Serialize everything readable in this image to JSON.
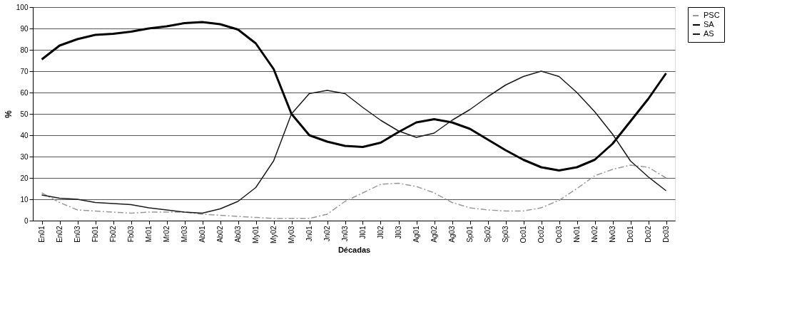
{
  "chart_data": {
    "type": "line",
    "xlabel": "Décadas",
    "ylabel": "%",
    "categories": [
      "En01",
      "En02",
      "En03",
      "Fb01",
      "Fb02",
      "Fb03",
      "Mr01",
      "Mr02",
      "Mr03",
      "Ab01",
      "Ab02",
      "Ab03",
      "My01",
      "My02",
      "My03",
      "Jn01",
      "Jn02",
      "Jn03",
      "Jl01",
      "Jl02",
      "Jl03",
      "Ag01",
      "Ag02",
      "Ag03",
      "Sp01",
      "Sp02",
      "Sp03",
      "Oc01",
      "Oc02",
      "Oc03",
      "Nv01",
      "Nv02",
      "Nv03",
      "Dc01",
      "Dc02",
      "Dc03"
    ],
    "series": [
      {
        "name": "PSC",
        "color": "#999999",
        "line_style": "dashed",
        "values": [
          13,
          8.5,
          5,
          4.5,
          4,
          3.5,
          4,
          4,
          4,
          3,
          2.5,
          2,
          1.5,
          1,
          1,
          1,
          3,
          9,
          13,
          17,
          17.5,
          16,
          13,
          8.5,
          6,
          5,
          4.5,
          4.5,
          6,
          9.5,
          15,
          21,
          24,
          26,
          25,
          20
        ]
      },
      {
        "name": "SA",
        "color": "#000000",
        "line_style": "solid",
        "values": [
          75.5,
          82,
          85,
          87,
          87.5,
          88.5,
          90,
          91,
          92.5,
          93,
          92,
          89.5,
          83,
          71,
          50,
          40,
          37,
          35,
          34.5,
          36.5,
          41.5,
          46,
          47.5,
          46,
          43,
          38,
          33,
          28.5,
          25,
          23.5,
          25,
          28.5,
          36,
          46.5,
          57,
          69
        ]
      },
      {
        "name": "AS",
        "color": "#1a1a1a",
        "line_style": "solid",
        "values": [
          12,
          10.5,
          10,
          8.5,
          8,
          7.5,
          6,
          5,
          4,
          3.5,
          5.5,
          9,
          15.5,
          28,
          50,
          59.5,
          61,
          59.5,
          53,
          47,
          42,
          39,
          41,
          47,
          52,
          58,
          63.5,
          67.5,
          70,
          67.5,
          60,
          51,
          40.5,
          28,
          20.5,
          14
        ]
      }
    ],
    "ylim": [
      0,
      100
    ],
    "yticks": [
      0,
      10,
      20,
      30,
      40,
      50,
      60,
      70,
      80,
      90,
      100
    ],
    "grid": "y",
    "legend": "right",
    "marker": "none"
  }
}
